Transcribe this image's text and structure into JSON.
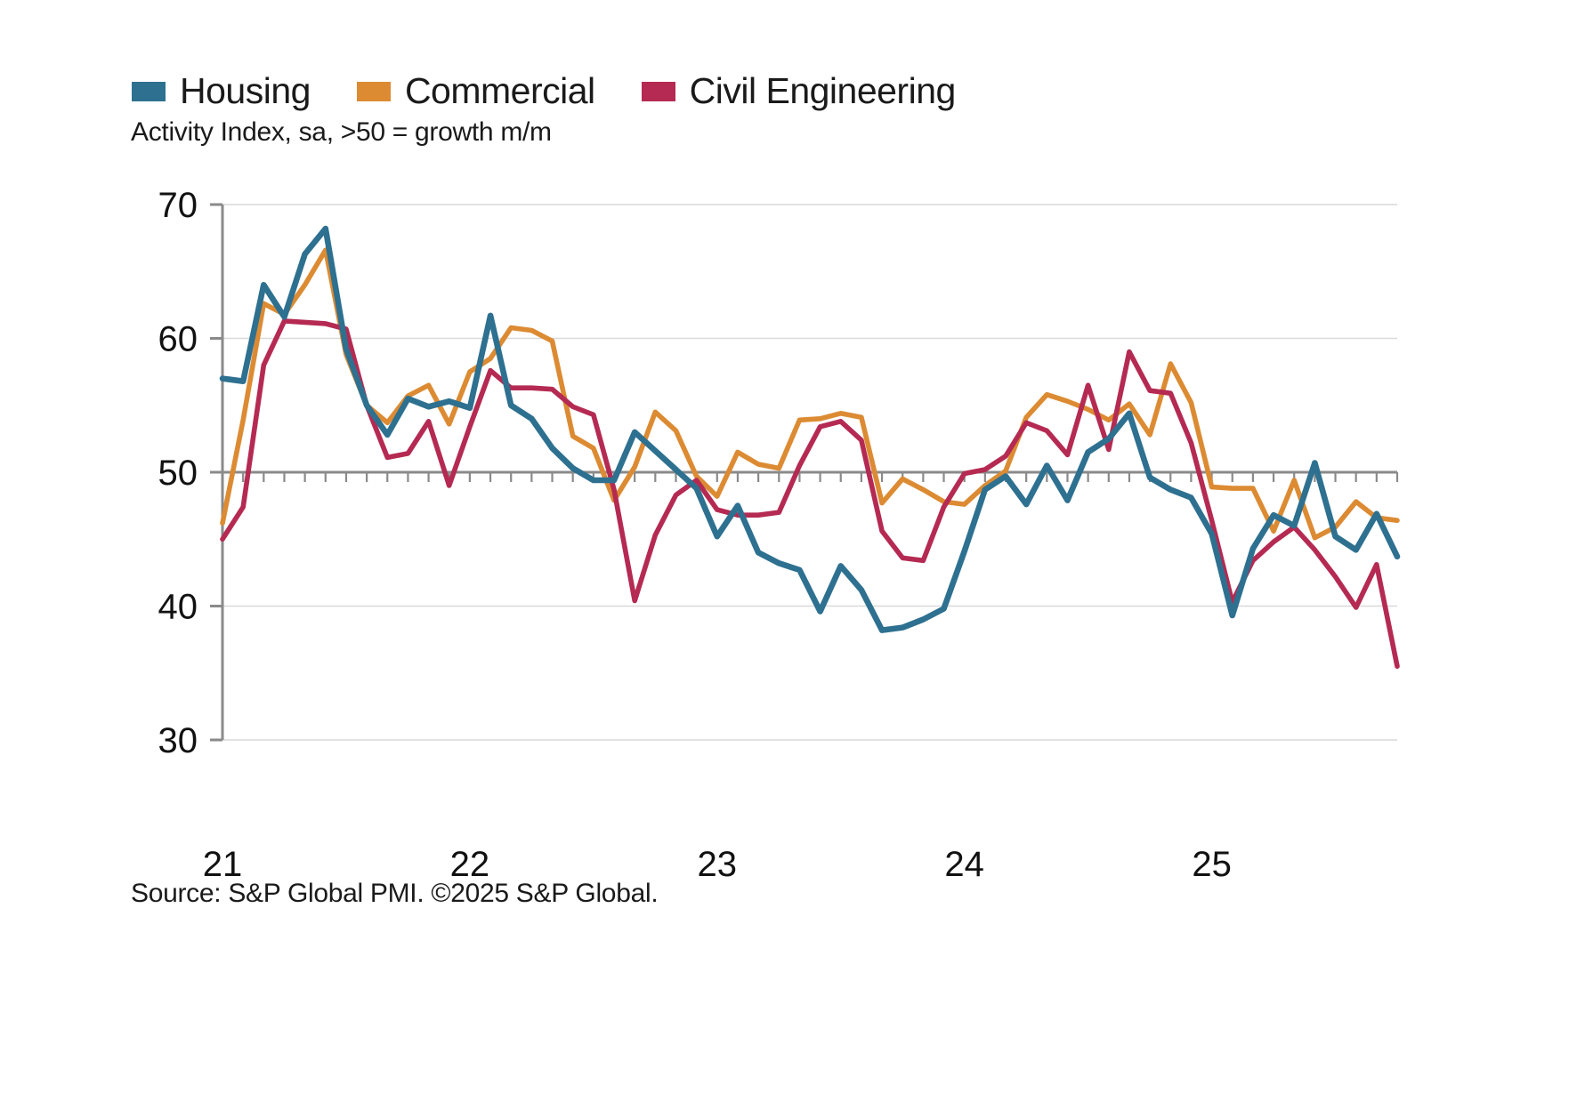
{
  "legend": {
    "items": [
      {
        "label": "Housing",
        "color": "#2e7090"
      },
      {
        "label": "Commercial",
        "color": "#dc8b33"
      },
      {
        "label": "Civil Engineering",
        "color": "#b52a52"
      }
    ]
  },
  "subtitle": "Activity Index, sa, >50 = growth m/m",
  "source": "Source: S&P Global PMI. ©2025 S&P Global.",
  "chart_data": {
    "type": "line",
    "title": "",
    "xlabel": "",
    "ylabel": "Activity Index, sa, >50 = growth m/m",
    "x_unit": "month",
    "x_start": "2021-01",
    "x_end": "2025-10",
    "ylim": [
      30,
      70
    ],
    "y_ticks": [
      30,
      40,
      50,
      60,
      70
    ],
    "baseline": 50,
    "grid": "horizontal",
    "legend_position": "top-left",
    "x_year_labels": [
      {
        "label": "21",
        "month_index": 0
      },
      {
        "label": "22",
        "month_index": 12
      },
      {
        "label": "23",
        "month_index": 24
      },
      {
        "label": "24",
        "month_index": 36
      },
      {
        "label": "25",
        "month_index": 48
      }
    ],
    "series": [
      {
        "name": "Housing",
        "color": "#2e7090",
        "values": [
          57.0,
          56.8,
          64.0,
          61.6,
          66.3,
          68.2,
          59.2,
          55.0,
          52.8,
          55.5,
          54.9,
          55.3,
          54.8,
          61.7,
          55.0,
          54.0,
          51.8,
          50.3,
          49.4,
          49.4,
          53.0,
          51.6,
          50.2,
          48.8,
          45.2,
          47.5,
          44.0,
          43.2,
          42.7,
          39.6,
          43.0,
          41.2,
          38.2,
          38.4,
          39.0,
          39.8,
          44.1,
          48.7,
          49.7,
          47.6,
          50.5,
          47.9,
          51.5,
          52.5,
          54.4,
          49.6,
          48.7,
          48.1,
          45.4,
          39.3,
          44.3,
          46.8,
          46.0,
          50.7,
          45.2,
          44.2,
          46.9,
          43.7
        ]
      },
      {
        "name": "Commercial",
        "color": "#dc8b33",
        "values": [
          46.2,
          53.9,
          62.6,
          61.8,
          64.0,
          66.6,
          58.8,
          55.0,
          53.7,
          55.7,
          56.5,
          53.6,
          57.5,
          58.5,
          60.8,
          60.6,
          59.8,
          52.7,
          51.8,
          47.9,
          50.4,
          54.5,
          53.1,
          49.7,
          48.2,
          51.5,
          50.6,
          50.3,
          53.9,
          54.0,
          54.4,
          54.1,
          47.7,
          49.5,
          48.7,
          47.8,
          47.6,
          49.0,
          50.1,
          54.1,
          55.8,
          55.3,
          54.7,
          53.9,
          55.1,
          52.8,
          58.1,
          55.2,
          48.9,
          48.8,
          48.8,
          45.6,
          49.4,
          45.1,
          45.9,
          47.8,
          46.6,
          46.4
        ]
      },
      {
        "name": "Civil Engineering",
        "color": "#b52a52",
        "values": [
          45.0,
          47.4,
          58.0,
          61.3,
          61.2,
          61.1,
          60.7,
          55.0,
          51.1,
          51.4,
          53.8,
          49.0,
          53.4,
          57.6,
          56.3,
          56.3,
          56.2,
          54.9,
          54.3,
          48.7,
          40.4,
          45.3,
          48.3,
          49.4,
          47.2,
          46.8,
          46.8,
          47.0,
          50.5,
          53.4,
          53.8,
          52.4,
          45.6,
          43.6,
          43.4,
          47.4,
          49.9,
          50.2,
          51.2,
          53.7,
          53.1,
          51.3,
          56.5,
          51.7,
          59.0,
          56.1,
          55.9,
          52.2,
          46.4,
          40.3,
          43.4,
          44.8,
          45.9,
          44.2,
          42.2,
          39.9,
          43.1,
          35.5
        ]
      }
    ]
  }
}
